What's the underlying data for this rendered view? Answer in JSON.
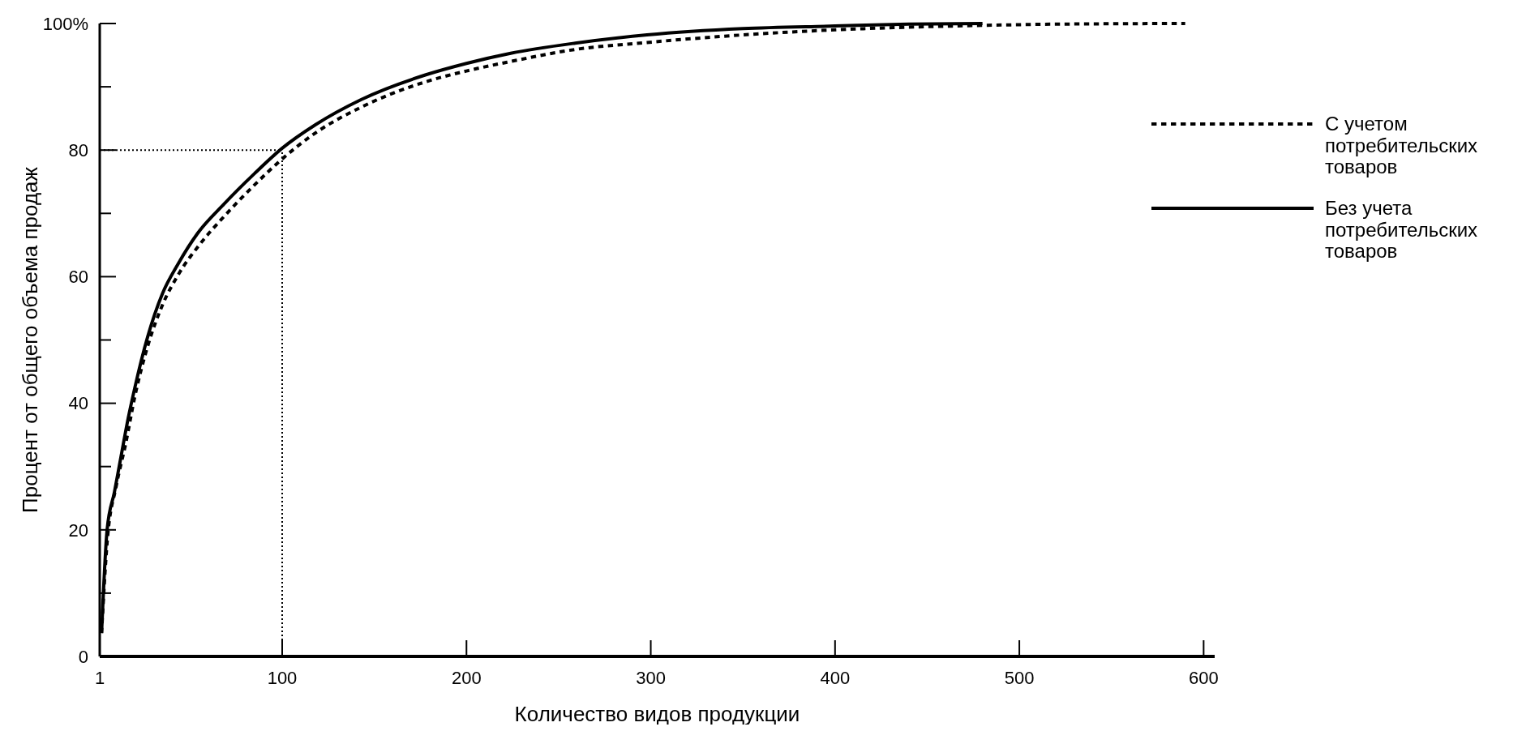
{
  "chart_data": {
    "type": "line",
    "xlabel": "Количество видов продукции",
    "ylabel": "Процент от общего объема продаж",
    "xlim": [
      1,
      606
    ],
    "xticks": [
      1,
      100,
      200,
      300,
      400,
      500,
      600
    ],
    "ylim": [
      0,
      100
    ],
    "yticks": [
      0,
      {
        "value": 10,
        "label": null
      },
      20,
      {
        "value": 30,
        "label": null
      },
      40,
      {
        "value": 50,
        "label": null
      },
      60,
      {
        "value": 70,
        "label": null
      },
      80,
      {
        "value": 90,
        "label": null
      },
      {
        "value": 100,
        "label": "100%"
      }
    ],
    "grid": false,
    "legend": "right",
    "series": [
      {
        "name": "С учетом потребительских товаров",
        "color": "#000000",
        "line_style": "dashed",
        "x": [
          2,
          5,
          10,
          15,
          20,
          27,
          35,
          44,
          55,
          70,
          85,
          100,
          118,
          143,
          178,
          200,
          224,
          259,
          298,
          350,
          400,
          450,
          480,
          520,
          590
        ],
        "values": [
          3.7,
          18,
          27,
          33.5,
          41,
          49,
          55.5,
          60.5,
          65,
          70,
          74.5,
          78.6,
          82.7,
          86.8,
          90.8,
          92.5,
          94,
          95.9,
          97,
          98.2,
          99,
          99.5,
          99.7,
          99.9,
          100
        ]
      },
      {
        "name": "Без учета потребительских товаров",
        "color": "#000000",
        "line_style": "solid",
        "x": [
          2,
          5,
          9,
          12.5,
          16,
          20,
          27,
          35,
          43.5,
          54,
          68.5,
          85,
          100,
          118,
          143,
          178,
          200,
          224,
          259,
          298,
          350,
          400,
          440,
          480
        ],
        "values": [
          3.7,
          20,
          26,
          31.5,
          37,
          42.4,
          50.5,
          57.3,
          62,
          66.8,
          71.5,
          76.3,
          80.3,
          84,
          88,
          91.9,
          93.7,
          95.3,
          96.9,
          98.2,
          99.2,
          99.6,
          99.9,
          100
        ]
      }
    ],
    "ref_lines": [
      {
        "axis": "x",
        "value": 100,
        "line_style": "dotted"
      },
      {
        "axis": "y",
        "value": 80,
        "line_style": "dotted"
      }
    ]
  }
}
